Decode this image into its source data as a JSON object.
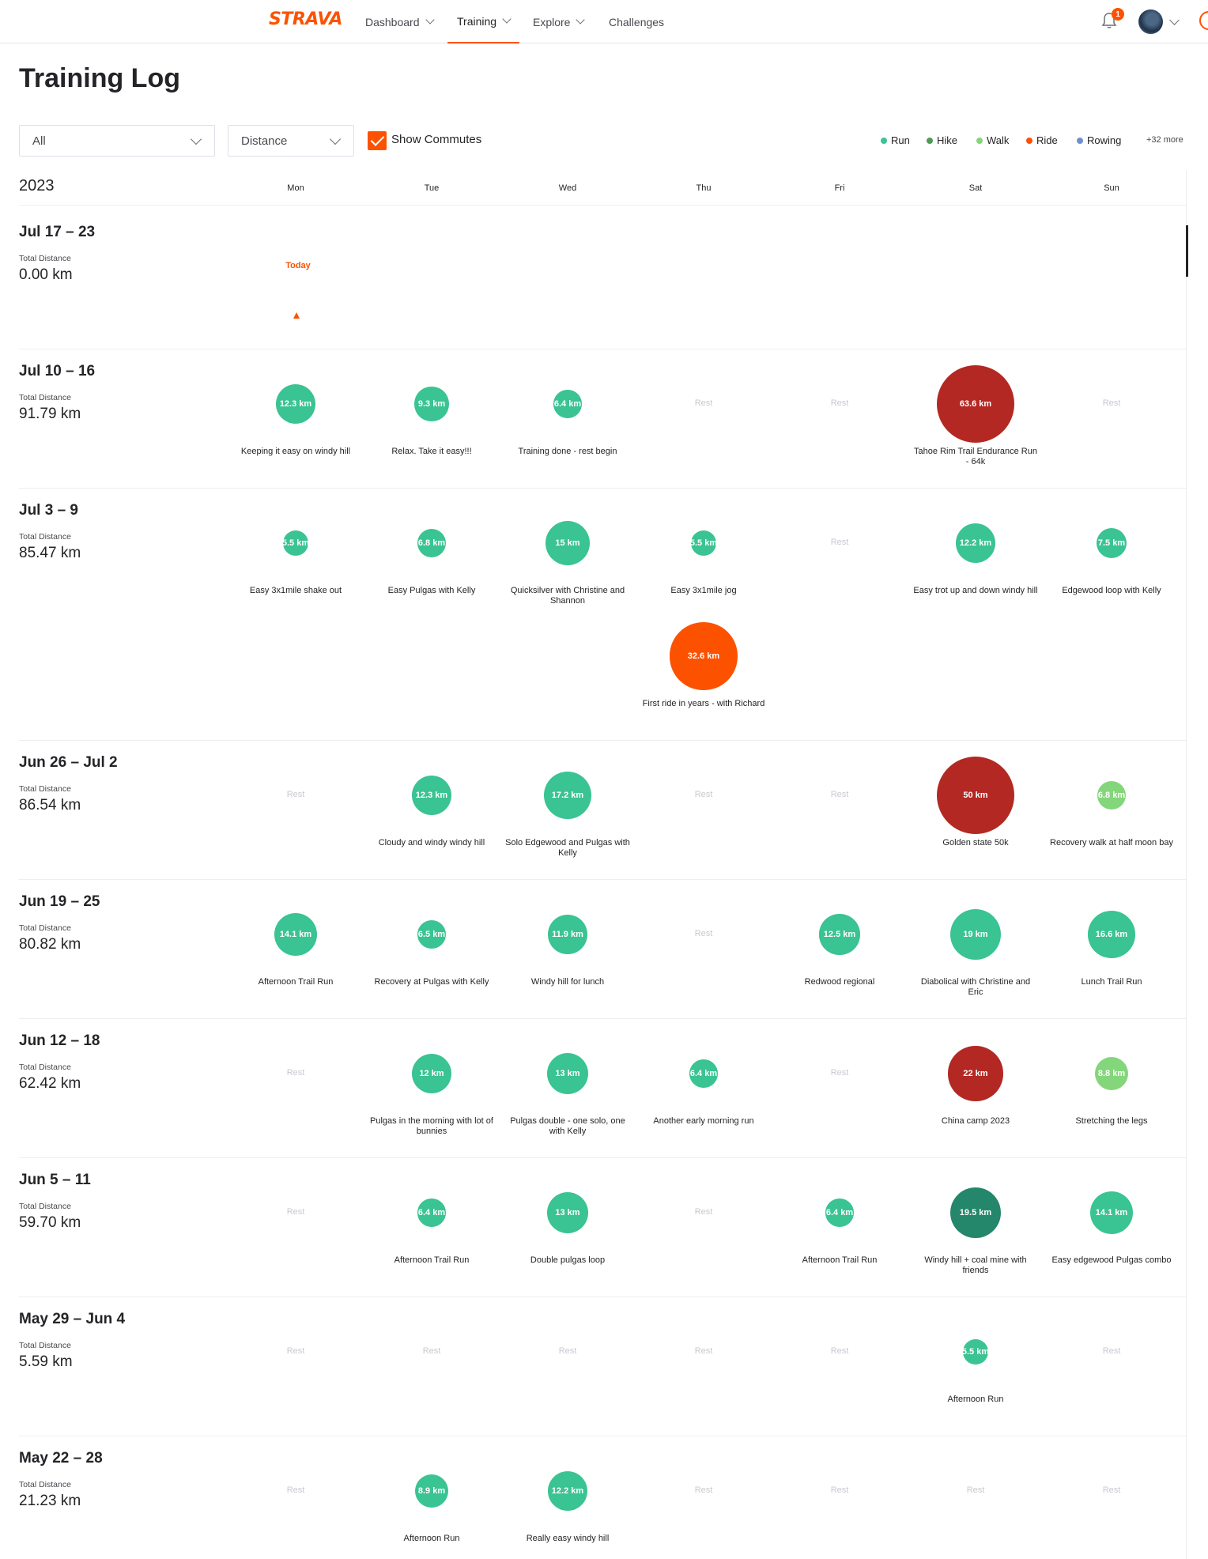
{
  "nav": {
    "logo": "STRAVA",
    "items": [
      {
        "label": "Dashboard",
        "chevron": true,
        "active": false
      },
      {
        "label": "Training",
        "chevron": true,
        "active": true
      },
      {
        "label": "Explore",
        "chevron": true,
        "active": false
      },
      {
        "label": "Challenges",
        "chevron": false,
        "active": false
      }
    ],
    "notification_count": "1",
    "icons": [
      "bell-icon",
      "avatar",
      "chevron-down-icon",
      "upload-icon"
    ]
  },
  "page": {
    "title": "Training Log"
  },
  "filters": {
    "sport": "All",
    "metric": "Distance",
    "show_commutes_label": "Show Commutes",
    "show_commutes_checked": true
  },
  "legend": {
    "items": [
      {
        "label": "Run",
        "color": "#3ac393"
      },
      {
        "label": "Hike",
        "color": "#4f9a54"
      },
      {
        "label": "Walk",
        "color": "#84d67a"
      },
      {
        "label": "Ride",
        "color": "#fc5200"
      },
      {
        "label": "Rowing",
        "color": "#6f8fcf"
      }
    ],
    "more": "+32 more"
  },
  "year": "2023",
  "days": [
    "Mon",
    "Tue",
    "Wed",
    "Thu",
    "Fri",
    "Sat",
    "Sun"
  ],
  "today_label": "Today",
  "total_label": "Total Distance",
  "rest_label": "Rest",
  "colors": {
    "run": "#3ac393",
    "run_race": "#b32823",
    "run_dark": "#24866a",
    "walk": "#84d67a",
    "ride": "#fc5200"
  },
  "weeks": [
    {
      "range": "Jul 17 – 23",
      "total": "0.00 km",
      "is_current": true,
      "activities": [],
      "rest_days": []
    },
    {
      "range": "Jul 10 – 16",
      "total": "91.79 km",
      "activities": [
        {
          "day": 0,
          "km": 12.3,
          "label": "12.3 km",
          "title": "Keeping it easy on windy hill",
          "type": "run"
        },
        {
          "day": 1,
          "km": 9.3,
          "label": "9.3 km",
          "title": "Relax. Take it easy!!!",
          "type": "run"
        },
        {
          "day": 2,
          "km": 6.4,
          "label": "6.4 km",
          "title": "Training done - rest begin",
          "type": "run"
        },
        {
          "day": 5,
          "km": 63.6,
          "label": "63.6 km",
          "title": "Tahoe Rim Trail Endurance Run - 64k",
          "type": "run_race"
        }
      ],
      "rest_days": [
        3,
        4,
        6
      ]
    },
    {
      "range": "Jul 3 – 9",
      "total": "85.47 km",
      "activities": [
        {
          "day": 0,
          "km": 5.5,
          "label": "5.5 km",
          "title": "Easy 3x1mile shake out",
          "type": "run"
        },
        {
          "day": 1,
          "km": 6.8,
          "label": "6.8 km",
          "title": "Easy Pulgas with Kelly",
          "type": "run"
        },
        {
          "day": 2,
          "km": 15,
          "label": "15 km",
          "title": "Quicksilver with Christine and Shannon",
          "type": "run"
        },
        {
          "day": 3,
          "km": 5.5,
          "label": "5.5 km",
          "title": "Easy 3x1mile jog",
          "type": "run"
        },
        {
          "day": 5,
          "km": 12.2,
          "label": "12.2 km",
          "title": "Easy trot up and down windy hill",
          "type": "run"
        },
        {
          "day": 6,
          "km": 7.5,
          "label": "7.5 km",
          "title": "Edgewood loop with Kelly",
          "type": "run"
        },
        {
          "day": 3,
          "km": 32.6,
          "label": "32.6 km",
          "title": "First ride in years - with Richard",
          "type": "ride",
          "second": true
        }
      ],
      "rest_days": [
        4
      ]
    },
    {
      "range": "Jun 26 – Jul 2",
      "total": "86.54 km",
      "activities": [
        {
          "day": 1,
          "km": 12.3,
          "label": "12.3 km",
          "title": "Cloudy and windy windy hill",
          "type": "run"
        },
        {
          "day": 2,
          "km": 17.2,
          "label": "17.2 km",
          "title": "Solo Edgewood and Pulgas with Kelly",
          "type": "run"
        },
        {
          "day": 5,
          "km": 50,
          "label": "50 km",
          "title": "Golden state 50k",
          "type": "run_race"
        },
        {
          "day": 6,
          "km": 6.8,
          "label": "6.8 km",
          "title": "Recovery walk at half moon bay",
          "type": "walk"
        }
      ],
      "rest_days": [
        0,
        3,
        4
      ]
    },
    {
      "range": "Jun 19 – 25",
      "total": "80.82 km",
      "activities": [
        {
          "day": 0,
          "km": 14.1,
          "label": "14.1 km",
          "title": "Afternoon Trail Run",
          "type": "run"
        },
        {
          "day": 1,
          "km": 6.5,
          "label": "6.5 km",
          "title": "Recovery at Pulgas with Kelly",
          "type": "run"
        },
        {
          "day": 2,
          "km": 11.9,
          "label": "11.9 km",
          "title": "Windy hill for lunch",
          "type": "run"
        },
        {
          "day": 4,
          "km": 12.5,
          "label": "12.5 km",
          "title": "Redwood regional",
          "type": "run"
        },
        {
          "day": 5,
          "km": 19,
          "label": "19 km",
          "title": "Diabolical with Christine and Eric",
          "type": "run"
        },
        {
          "day": 6,
          "km": 16.6,
          "label": "16.6 km",
          "title": "Lunch Trail Run",
          "type": "run"
        }
      ],
      "rest_days": [
        3
      ]
    },
    {
      "range": "Jun 12 – 18",
      "total": "62.42 km",
      "activities": [
        {
          "day": 1,
          "km": 12,
          "label": "12 km",
          "title": "Pulgas in the morning with lot of bunnies",
          "type": "run"
        },
        {
          "day": 2,
          "km": 13,
          "label": "13 km",
          "title": "Pulgas double - one solo, one with Kelly",
          "type": "run"
        },
        {
          "day": 3,
          "km": 6.4,
          "label": "6.4 km",
          "title": "Another early morning run",
          "type": "run"
        },
        {
          "day": 5,
          "km": 22,
          "label": "22 km",
          "title": "China camp 2023",
          "type": "run_race"
        },
        {
          "day": 6,
          "km": 8.8,
          "label": "8.8 km",
          "title": "Stretching the legs",
          "type": "walk"
        }
      ],
      "rest_days": [
        0,
        4
      ]
    },
    {
      "range": "Jun 5 – 11",
      "total": "59.70 km",
      "activities": [
        {
          "day": 1,
          "km": 6.4,
          "label": "6.4 km",
          "title": "Afternoon Trail Run",
          "type": "run"
        },
        {
          "day": 2,
          "km": 13,
          "label": "13 km",
          "title": "Double pulgas loop",
          "type": "run"
        },
        {
          "day": 4,
          "km": 6.4,
          "label": "6.4 km",
          "title": "Afternoon Trail Run",
          "type": "run"
        },
        {
          "day": 5,
          "km": 19.5,
          "label": "19.5 km",
          "title": "Windy hill + coal mine with friends",
          "type": "run_dark"
        },
        {
          "day": 6,
          "km": 14.1,
          "label": "14.1 km",
          "title": "Easy edgewood Pulgas combo",
          "type": "run"
        }
      ],
      "rest_days": [
        0,
        3
      ]
    },
    {
      "range": "May 29 – Jun 4",
      "total": "5.59 km",
      "activities": [
        {
          "day": 5,
          "km": 5.5,
          "label": "5.5 km",
          "title": "Afternoon Run",
          "type": "run"
        }
      ],
      "rest_days": [
        0,
        1,
        2,
        3,
        4,
        6
      ]
    },
    {
      "range": "May 22 – 28",
      "total": "21.23 km",
      "activities": [
        {
          "day": 1,
          "km": 8.9,
          "label": "8.9 km",
          "title": "Afternoon Run",
          "type": "run"
        },
        {
          "day": 2,
          "km": 12.2,
          "label": "12.2 km",
          "title": "Really easy windy hill",
          "type": "run"
        }
      ],
      "rest_days": [
        0,
        3,
        4,
        5,
        6
      ]
    }
  ]
}
